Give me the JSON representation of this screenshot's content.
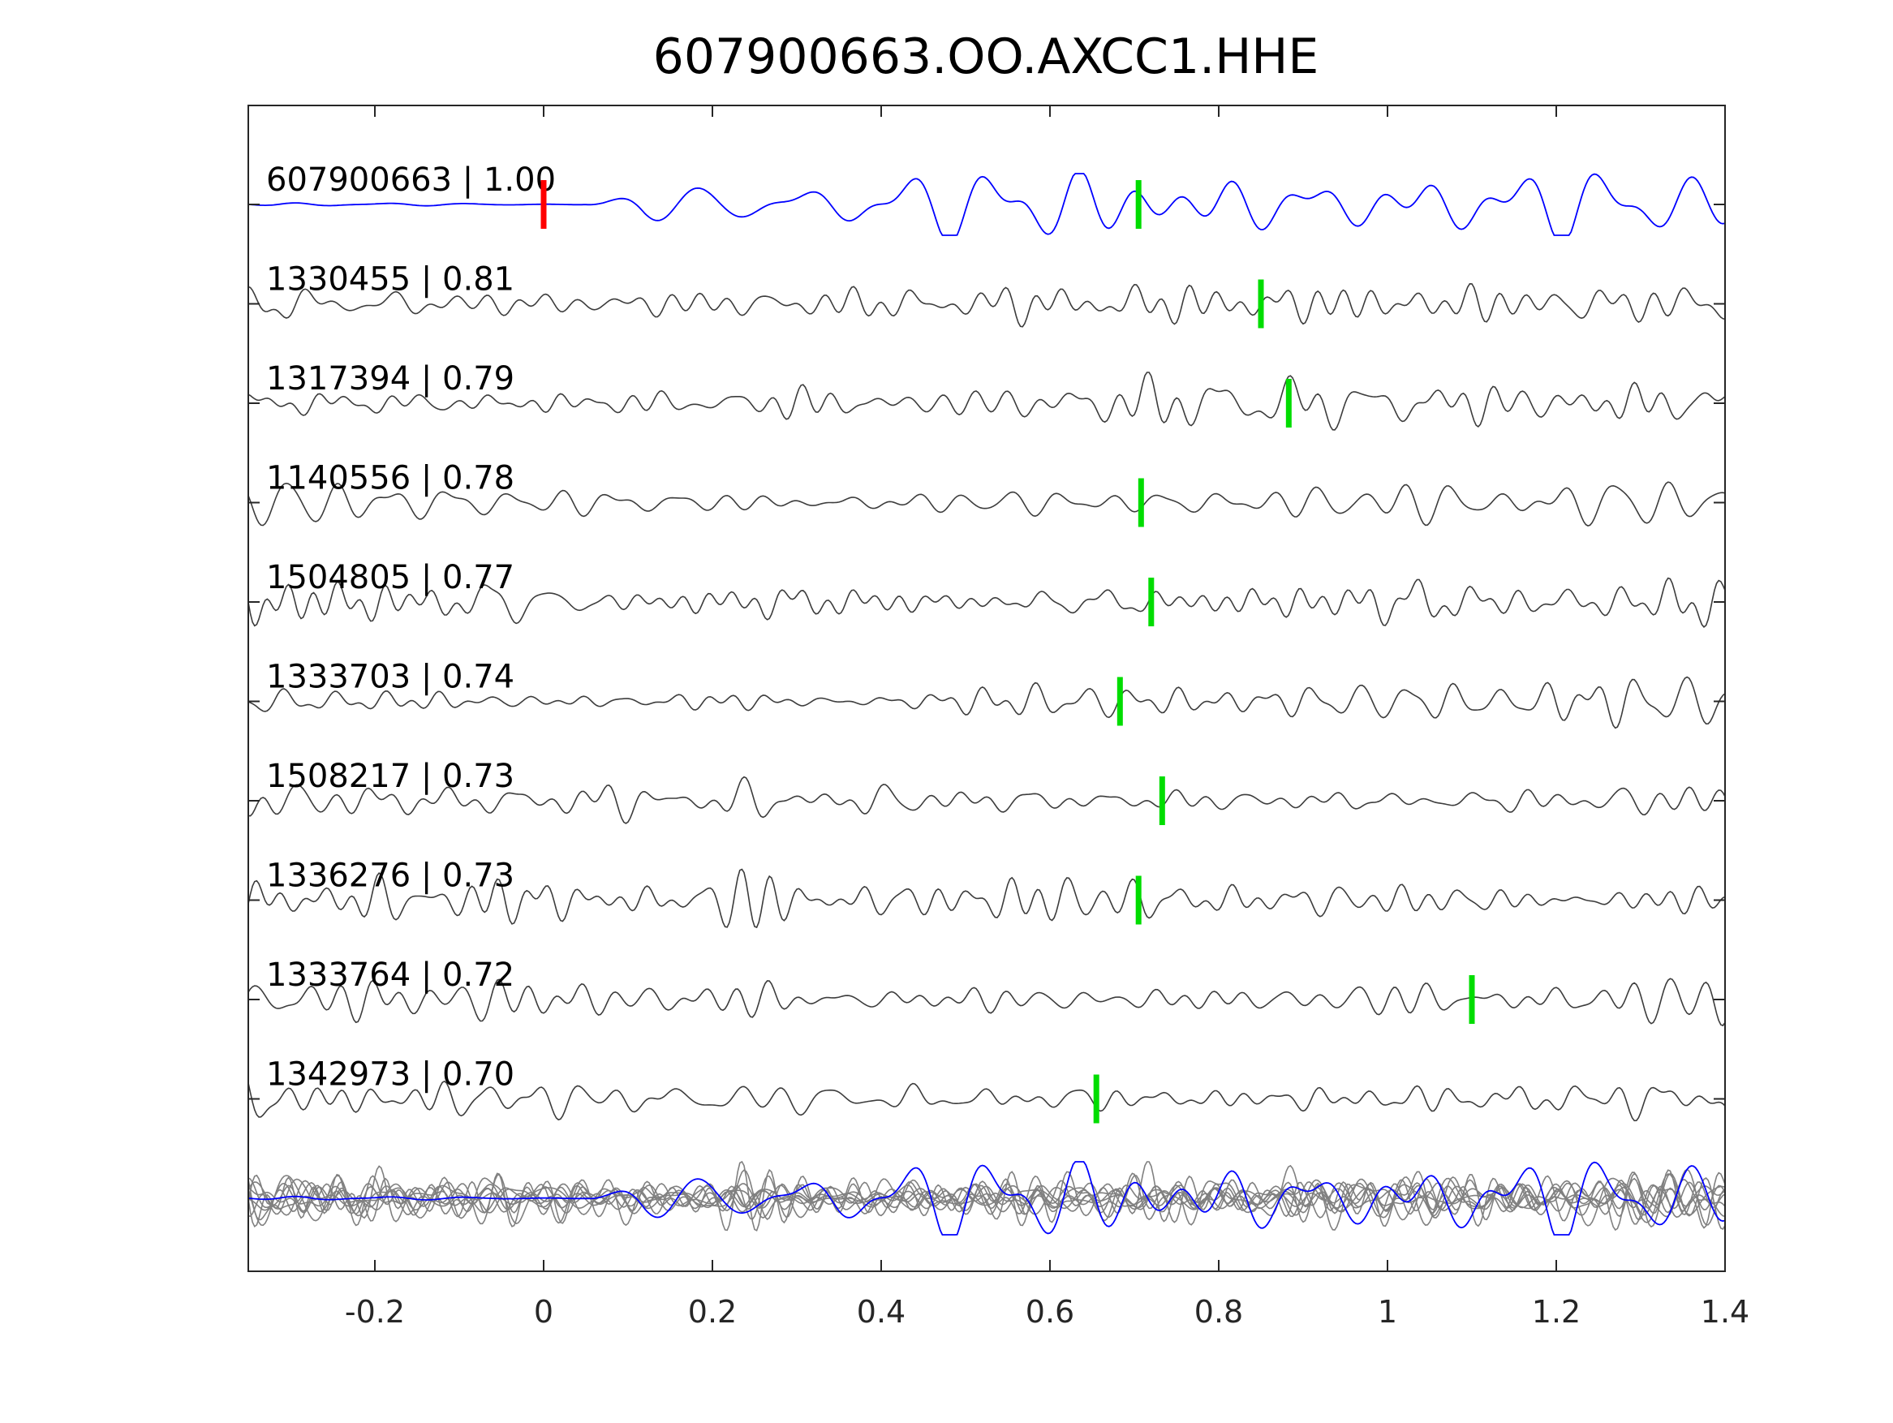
{
  "chart_data": {
    "type": "line",
    "title": "607900663.OO.AXCC1.HHE",
    "xlabel": "",
    "ylabel": "",
    "xlim": [
      -0.35,
      1.4
    ],
    "xticks": [
      -0.2,
      0,
      0.2,
      0.4,
      0.6,
      0.8,
      1,
      1.2,
      1.4
    ],
    "xtick_labels": [
      "-0.2",
      "0",
      "0.2",
      "0.4",
      "0.6",
      "0.8",
      "1",
      "1.2",
      "1.4"
    ],
    "grid": false,
    "legend": "none",
    "colors": {
      "template": "#0000ff",
      "trace": "#3c3c3c",
      "overlay": "#808080",
      "template_pick": "#ff0000",
      "detection_pick": "#00dd00",
      "axes": "#262626"
    },
    "series": [
      {
        "label": "607900663 | 1.00",
        "pick_time": 0.705,
        "template_pick_time": 0.0,
        "role": "template",
        "seed": 11
      },
      {
        "label": "1330455 | 0.81",
        "pick_time": 0.85,
        "role": "detection",
        "seed": 23
      },
      {
        "label": "1317394 | 0.79",
        "pick_time": 0.883,
        "role": "detection",
        "seed": 37
      },
      {
        "label": "1140556 | 0.78",
        "pick_time": 0.708,
        "role": "detection",
        "seed": 41
      },
      {
        "label": "1504805 | 0.77",
        "pick_time": 0.72,
        "role": "detection",
        "seed": 53
      },
      {
        "label": "1333703 | 0.74",
        "pick_time": 0.683,
        "role": "detection",
        "seed": 67
      },
      {
        "label": "1508217 | 0.73",
        "pick_time": 0.733,
        "role": "detection",
        "seed": 71
      },
      {
        "label": "1336276 | 0.73",
        "pick_time": 0.705,
        "role": "detection",
        "seed": 83
      },
      {
        "label": "1333764 | 0.72",
        "pick_time": 1.1,
        "role": "detection",
        "seed": 97
      },
      {
        "label": "1342973 | 0.70",
        "pick_time": 0.655,
        "role": "detection",
        "seed": 103
      }
    ],
    "overlay": "all traces stacked"
  }
}
